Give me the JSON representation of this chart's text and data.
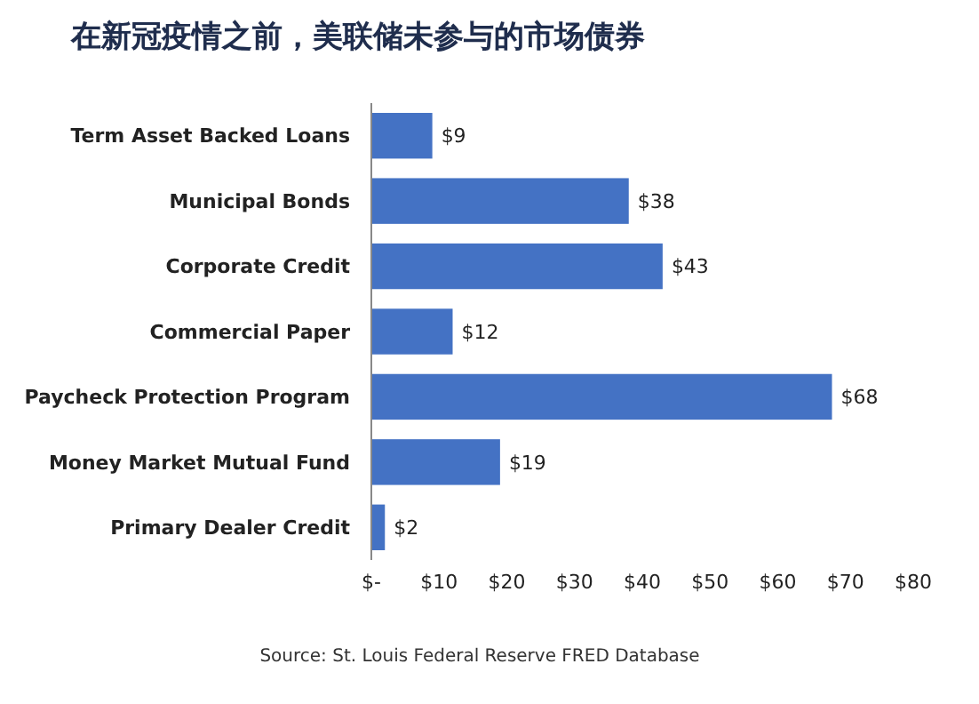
{
  "chart_data": {
    "type": "bar",
    "orientation": "horizontal",
    "title": "在新冠疫情之前，美联储未参与的市场债券",
    "categories": [
      "Term Asset Backed Loans",
      "Municipal Bonds",
      "Corporate Credit",
      "Commercial Paper",
      "Paycheck Protection Program",
      "Money Market Mutual Fund",
      "Primary Dealer Credit"
    ],
    "values": [
      9,
      38,
      43,
      12,
      68,
      19,
      2
    ],
    "value_labels": [
      "$9",
      "$38",
      "$43",
      "$12",
      "$68",
      "$19",
      "$2"
    ],
    "color": "#4472c4",
    "xlim": [
      0,
      80
    ],
    "xticks": [
      {
        "value": 0,
        "label": "$-"
      },
      {
        "value": 10,
        "label": "$10"
      },
      {
        "value": 20,
        "label": "$20"
      },
      {
        "value": 30,
        "label": "$30"
      },
      {
        "value": 40,
        "label": "$40"
      },
      {
        "value": 50,
        "label": "$50"
      },
      {
        "value": 60,
        "label": "$60"
      },
      {
        "value": 70,
        "label": "$70"
      },
      {
        "value": 80,
        "label": "$80"
      }
    ],
    "grid": false,
    "annotations": [
      "Source: St. Louis Federal Reserve FRED Database"
    ]
  }
}
